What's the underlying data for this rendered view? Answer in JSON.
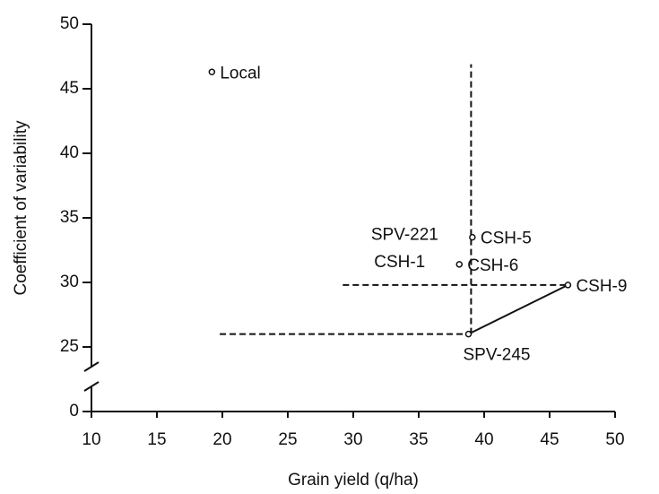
{
  "chart_data": {
    "type": "scatter",
    "xlabel": "Grain yield (q/ha)",
    "ylabel": "Coefficient of variability",
    "xlim": [
      10,
      50
    ],
    "xticks": [
      10,
      15,
      20,
      25,
      30,
      35,
      40,
      45,
      50
    ],
    "ylim": [
      0,
      50
    ],
    "yticks": [
      0,
      25,
      30,
      35,
      40,
      45,
      50
    ],
    "ybreak": [
      0,
      25
    ],
    "color": "#111111",
    "points": [
      {
        "x": 19.2,
        "y": 46.3,
        "labels": [
          {
            "text": "Local",
            "side": "right"
          }
        ]
      },
      {
        "x": 39.1,
        "y": 33.5,
        "labels": [
          {
            "text": "SPV-221",
            "side": "left"
          },
          {
            "text": "CSH-5",
            "side": "right"
          }
        ]
      },
      {
        "x": 38.1,
        "y": 31.4,
        "labels": [
          {
            "text": "CSH-1",
            "side": "left"
          },
          {
            "text": "CSH-6",
            "side": "right"
          }
        ]
      },
      {
        "x": 46.4,
        "y": 29.8,
        "labels": [
          {
            "text": "CSH-9",
            "side": "right"
          }
        ]
      },
      {
        "x": 38.8,
        "y": 26.0,
        "labels": [
          {
            "text": "SPV-245",
            "side": "below"
          }
        ]
      }
    ],
    "lines": [
      {
        "style": "solid",
        "x": [
          38.8,
          46.4
        ],
        "y": [
          26.0,
          29.8
        ]
      },
      {
        "style": "dashed",
        "x": [
          39.0,
          39.0
        ],
        "y": [
          26.0,
          46.9
        ]
      },
      {
        "style": "dashed",
        "x": [
          29.2,
          46.4
        ],
        "y": [
          29.8,
          29.8
        ]
      },
      {
        "style": "dashed",
        "x": [
          19.8,
          38.8
        ],
        "y": [
          26.0,
          26.0
        ]
      }
    ]
  }
}
